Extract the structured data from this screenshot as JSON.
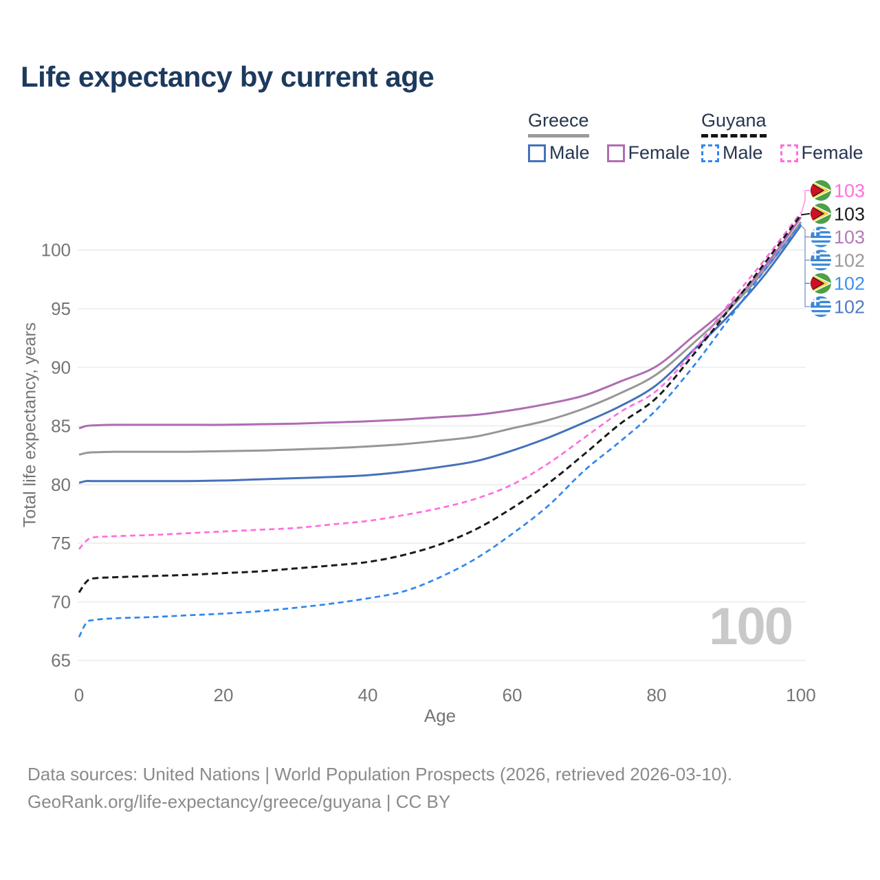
{
  "title": "Life expectancy by current age",
  "legend": {
    "groups": [
      {
        "country": "Greece",
        "line_style": "solid",
        "items": [
          {
            "label": "Male"
          },
          {
            "label": "Female"
          }
        ]
      },
      {
        "country": "Guyana",
        "line_style": "dashed",
        "items": [
          {
            "label": "Male"
          },
          {
            "label": "Female"
          }
        ]
      }
    ]
  },
  "watermark": "100",
  "footer": {
    "line1": "Data sources: United Nations | World Population Prospects (2026, retrieved 2026-03-10).",
    "line2": "GeoRank.org/life-expectancy/greece/guyana | CC BY"
  },
  "colors": {
    "title_text": "#1d3a5e",
    "legend_text": "#26364f",
    "axis_text": "#757575",
    "grid": "#ececec",
    "watermark": "#c9c9c9",
    "footer_text": "#8a8a8a",
    "greece_male": "#4471bb",
    "greece_female": "#af6cb1",
    "greece_all": "#969696",
    "guyana_male": "#2f86ee",
    "guyana_female": "#ff6edd",
    "guyana_all": "#1a1a1a"
  },
  "chart_data": {
    "type": "line",
    "title": "Life expectancy by current age",
    "xlabel": "Age",
    "ylabel": "Total life expectancy, years",
    "xlim": [
      0,
      100
    ],
    "ylim": [
      64,
      104
    ],
    "x_ticks": [
      0,
      20,
      40,
      60,
      80,
      100
    ],
    "y_ticks": [
      65,
      70,
      75,
      80,
      85,
      90,
      95,
      100
    ],
    "grid": "horizontal",
    "legend_position": "top-right",
    "x": [
      0,
      1,
      2,
      5,
      10,
      15,
      20,
      25,
      30,
      35,
      40,
      45,
      50,
      55,
      60,
      65,
      70,
      75,
      80,
      85,
      90,
      95,
      100
    ],
    "series": [
      {
        "name": "Greece Female",
        "country": "Greece",
        "sex": "female",
        "line_style": "solid",
        "color": "#af6cb1",
        "end_label": "103",
        "label_color": "#b07ab5",
        "label_row": 2,
        "flag": "greece",
        "values": [
          84.8,
          85.0,
          85.05,
          85.1,
          85.1,
          85.1,
          85.1,
          85.15,
          85.2,
          85.3,
          85.4,
          85.55,
          85.75,
          85.95,
          86.35,
          86.9,
          87.6,
          88.8,
          90.1,
          92.6,
          95.2,
          98.6,
          102.8
        ]
      },
      {
        "name": "Greece All",
        "country": "Greece",
        "sex": "all",
        "line_style": "solid",
        "color": "#969696",
        "end_label": "102",
        "label_color": "#9a9a9a",
        "label_row": 3,
        "flag": "greece",
        "values": [
          82.55,
          82.7,
          82.75,
          82.8,
          82.8,
          82.8,
          82.85,
          82.9,
          83.0,
          83.1,
          83.25,
          83.45,
          83.75,
          84.1,
          84.8,
          85.5,
          86.5,
          87.8,
          89.4,
          92.0,
          94.9,
          98.3,
          102.4
        ]
      },
      {
        "name": "Greece Male",
        "country": "Greece",
        "sex": "male",
        "line_style": "solid",
        "color": "#4471bb",
        "end_label": "102",
        "label_color": "#4e79c7",
        "label_row": 5,
        "flag": "greece",
        "values": [
          80.15,
          80.3,
          80.3,
          80.3,
          80.3,
          80.3,
          80.35,
          80.45,
          80.55,
          80.65,
          80.8,
          81.1,
          81.5,
          82.0,
          82.9,
          84.0,
          85.3,
          86.7,
          88.5,
          91.4,
          94.4,
          97.9,
          102.1
        ]
      },
      {
        "name": "Guyana Female",
        "country": "Guyana",
        "sex": "female",
        "line_style": "dashed",
        "color": "#ff6edd",
        "end_label": "103",
        "label_color": "#ff6edd",
        "label_row": 0,
        "flag": "guyana",
        "values": [
          74.5,
          75.2,
          75.5,
          75.6,
          75.7,
          75.85,
          76.0,
          76.15,
          76.3,
          76.6,
          76.9,
          77.4,
          78.0,
          78.8,
          80.0,
          81.8,
          84.0,
          86.2,
          88.0,
          91.3,
          95.4,
          99.2,
          103.2
        ]
      },
      {
        "name": "Guyana All",
        "country": "Guyana",
        "sex": "all",
        "line_style": "dashed",
        "color": "#1a1a1a",
        "end_label": "103",
        "label_color": "#1a1a1a",
        "label_row": 1,
        "flag": "guyana",
        "values": [
          70.8,
          71.7,
          72.0,
          72.1,
          72.2,
          72.3,
          72.45,
          72.6,
          72.85,
          73.1,
          73.4,
          74.0,
          74.9,
          76.2,
          78.0,
          80.1,
          82.6,
          85.2,
          87.4,
          91.0,
          94.9,
          98.9,
          103.0
        ]
      },
      {
        "name": "Guyana Male",
        "country": "Guyana",
        "sex": "male",
        "line_style": "dashed",
        "color": "#2f86ee",
        "end_label": "102",
        "label_color": "#4090e8",
        "label_row": 4,
        "flag": "guyana",
        "values": [
          67.0,
          68.2,
          68.45,
          68.6,
          68.7,
          68.85,
          69.0,
          69.2,
          69.5,
          69.85,
          70.3,
          70.9,
          72.1,
          73.7,
          75.8,
          78.2,
          81.2,
          83.7,
          86.4,
          90.0,
          94.1,
          98.3,
          102.2
        ]
      }
    ]
  }
}
